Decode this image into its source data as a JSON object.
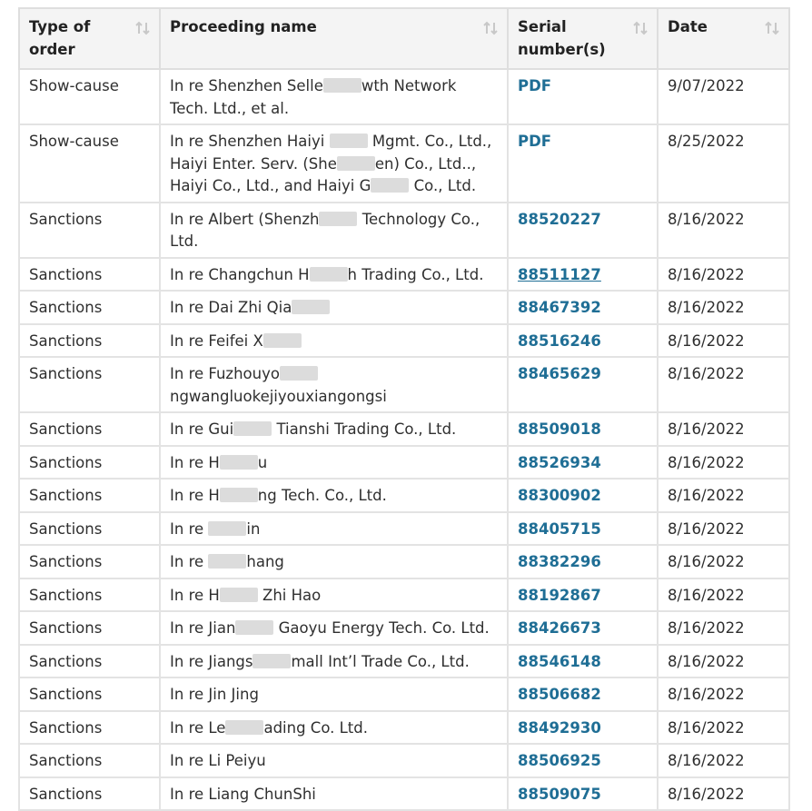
{
  "colors": {
    "header_bg": "#f4f4f4",
    "border": "#e3e3e3",
    "link": "#1f6e95",
    "text": "#2f2f2f"
  },
  "table": {
    "headers": [
      {
        "label": "Type of order",
        "icon": "sort-arrows-icon"
      },
      {
        "label": "Proceeding name",
        "icon": "sort-arrows-icon"
      },
      {
        "label": "Serial number(s)",
        "icon": "sort-arrows-icon"
      },
      {
        "label": "Date",
        "icon": "sort-arrows-icon"
      }
    ],
    "rows": [
      {
        "type": "Show-cause",
        "name": "In re Shenzhen Selle██wth Network Tech. Ltd., et al.",
        "serial": "PDF",
        "date": "9/07/2022"
      },
      {
        "type": "Show-cause",
        "name": "In re Shenzhen Haiyi ██ Mgmt. Co., Ltd., Haiyi Enter. Serv. (She██en) Co., Ltd.., Haiyi Co., Ltd., and Haiyi G██ Co., Ltd.",
        "serial": "PDF",
        "date": "8/25/2022"
      },
      {
        "type": "Sanctions",
        "name": "In re Albert (Shenzh██ Technology Co., Ltd.",
        "serial": "88520227",
        "date": "8/16/2022"
      },
      {
        "type": "Sanctions",
        "name": "In re Changchun H██h Trading Co., Ltd.",
        "serial": "88511127",
        "date": "8/16/2022",
        "hovered": true
      },
      {
        "type": "Sanctions",
        "name": "In re Dai Zhi Qia██",
        "serial": "88467392",
        "date": "8/16/2022"
      },
      {
        "type": "Sanctions",
        "name": "In re Feifei X██",
        "serial": "88516246",
        "date": "8/16/2022"
      },
      {
        "type": "Sanctions",
        "name": "In re Fuzhouyo██ngwangluokejiyouxiangongsi",
        "serial": "88465629",
        "date": "8/16/2022"
      },
      {
        "type": "Sanctions",
        "name": "In re Gui██ Tianshi Trading Co., Ltd.",
        "serial": "88509018",
        "date": "8/16/2022"
      },
      {
        "type": "Sanctions",
        "name": "In re H██u",
        "serial": "88526934",
        "date": "8/16/2022"
      },
      {
        "type": "Sanctions",
        "name": "In re H██ng Tech. Co., Ltd.",
        "serial": "88300902",
        "date": "8/16/2022"
      },
      {
        "type": "Sanctions",
        "name": "In re ██in",
        "serial": "88405715",
        "date": "8/16/2022"
      },
      {
        "type": "Sanctions",
        "name": "In re ██hang",
        "serial": "88382296",
        "date": "8/16/2022"
      },
      {
        "type": "Sanctions",
        "name": "In re H██ Zhi Hao",
        "serial": "88192867",
        "date": "8/16/2022"
      },
      {
        "type": "Sanctions",
        "name": "In re Jian██ Gaoyu Energy Tech. Co. Ltd.",
        "serial": "88426673",
        "date": "8/16/2022"
      },
      {
        "type": "Sanctions",
        "name": "In re Jiangs██mall Int’l Trade Co., Ltd.",
        "serial": "88546148",
        "date": "8/16/2022"
      },
      {
        "type": "Sanctions",
        "name": "In re Jin Jing",
        "serial": "88506682",
        "date": "8/16/2022"
      },
      {
        "type": "Sanctions",
        "name": "In re Le██ading Co. Ltd.",
        "serial": "88492930",
        "date": "8/16/2022"
      },
      {
        "type": "Sanctions",
        "name": "In re Li Peiyu",
        "serial": "88506925",
        "date": "8/16/2022"
      },
      {
        "type": "Sanctions",
        "name": "In re Liang ChunShi",
        "serial": "88509075",
        "date": "8/16/2022"
      }
    ]
  }
}
